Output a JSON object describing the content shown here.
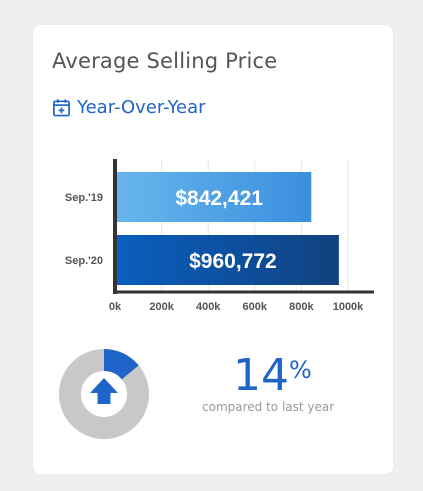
{
  "card": {
    "title": "Average Selling Price",
    "subtitle": "Year-Over-Year",
    "subtitle_icon": "calendar-plus-icon"
  },
  "chart_data": {
    "type": "bar",
    "orientation": "horizontal",
    "categories": [
      "Sep.'19",
      "Sep.'20"
    ],
    "values": [
      842421,
      960772
    ],
    "data_labels": [
      "$842,421",
      "$960,772"
    ],
    "xlim": [
      0,
      1000000
    ],
    "x_ticks": [
      0,
      200000,
      400000,
      600000,
      800000,
      1000000
    ],
    "x_tick_labels": [
      "0k",
      "200k",
      "400k",
      "600k",
      "800k",
      "1000k"
    ],
    "grid": true,
    "bar_colors": [
      [
        "#68b6ec",
        "#3a8fde"
      ],
      [
        "#0a5fbf",
        "#11417f"
      ]
    ]
  },
  "change": {
    "percent": 14,
    "number": "14",
    "sign": "%",
    "caption": "compared to last year",
    "direction_icon": "arrow-up-icon",
    "accent_color": "#1f64c8",
    "track_color": "#c8c8c8"
  }
}
